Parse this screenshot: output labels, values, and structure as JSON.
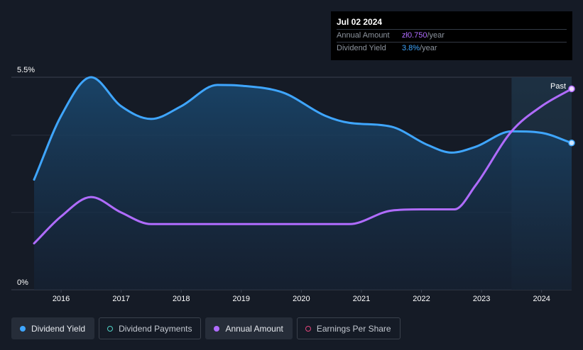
{
  "tooltip": {
    "date": "Jul 02 2024",
    "rows": [
      {
        "label": "Annual Amount",
        "value": "zł0.750",
        "unit": "/year"
      },
      {
        "label": "Dividend Yield",
        "value": "3.8%",
        "unit": "/year"
      }
    ]
  },
  "legend": [
    {
      "label": "Dividend Yield",
      "color": "#3fa6ff",
      "style": "filled",
      "active": true
    },
    {
      "label": "Dividend Payments",
      "color": "#4fd1c5",
      "style": "hollow",
      "active": false
    },
    {
      "label": "Annual Amount",
      "color": "#b06cff",
      "style": "filled",
      "active": true
    },
    {
      "label": "Earnings Per Share",
      "color": "#e0457b",
      "style": "hollow",
      "active": false
    }
  ],
  "chart_data": {
    "type": "line",
    "y_ticks": [
      {
        "value": 5.5,
        "label": "5.5%"
      },
      {
        "value": 0,
        "label": "0%"
      }
    ],
    "ylim": [
      0,
      5.5
    ],
    "xlim": [
      2015.55,
      2024.5
    ],
    "x_ticks": [
      "2016",
      "2017",
      "2018",
      "2019",
      "2020",
      "2021",
      "2022",
      "2023",
      "2024"
    ],
    "past_label": "Past",
    "past_start": 2023.5,
    "colors": {
      "yield": "#3fa6ff",
      "amount": "#b06cff"
    },
    "series": [
      {
        "key": "yield",
        "x": [
          2015.55,
          2016.0,
          2016.5,
          2017.0,
          2017.5,
          2018.0,
          2018.6,
          2019.0,
          2019.7,
          2020.4,
          2020.8,
          2021.5,
          2022.1,
          2022.5,
          2022.9,
          2023.5,
          2024.0,
          2024.5
        ],
        "y": [
          2.85,
          4.5,
          5.5,
          4.75,
          4.42,
          4.75,
          5.3,
          5.28,
          5.1,
          4.5,
          4.32,
          4.22,
          3.75,
          3.55,
          3.7,
          4.1,
          4.06,
          3.8
        ]
      },
      {
        "key": "amount",
        "x": [
          2015.55,
          2016.0,
          2016.5,
          2017.0,
          2017.5,
          2018.0,
          2019.0,
          2020.0,
          2020.8,
          2021.5,
          2022.0,
          2022.55,
          2022.9,
          2023.5,
          2024.0,
          2024.5
        ],
        "y": [
          1.2,
          1.9,
          2.4,
          2.0,
          1.7,
          1.7,
          1.7,
          1.7,
          1.7,
          2.05,
          2.08,
          2.08,
          2.7,
          4.1,
          4.75,
          5.2
        ]
      }
    ]
  }
}
